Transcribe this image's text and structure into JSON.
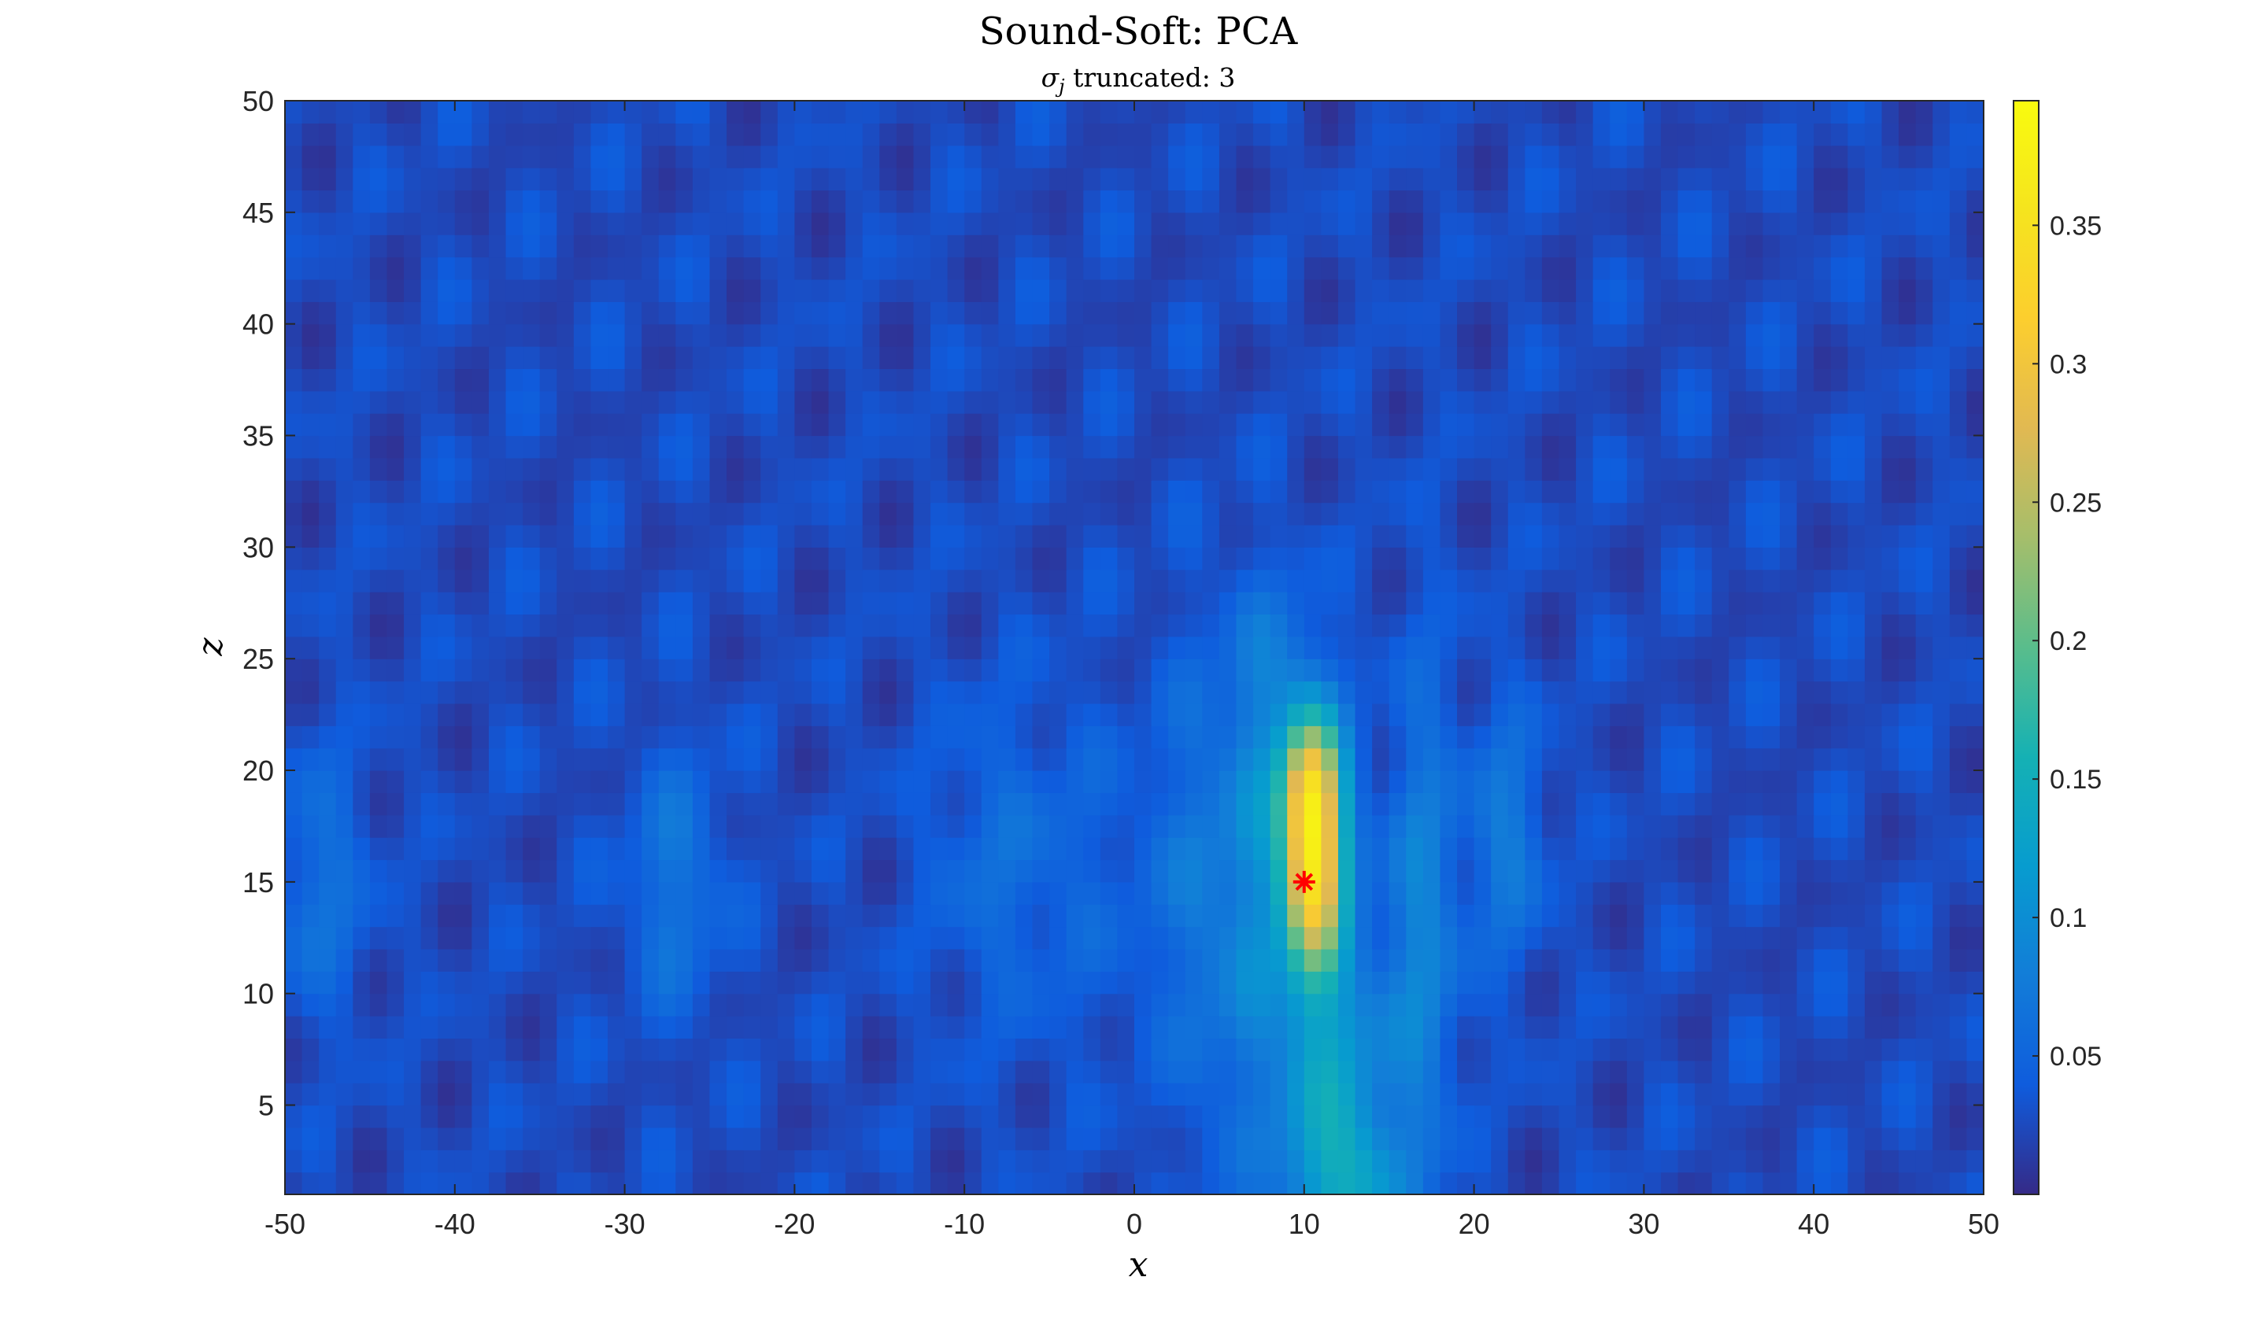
{
  "chart_data": {
    "type": "heatmap",
    "title": "Sound-Soft: PCA",
    "subtitle": {
      "symbol": "σ",
      "subscript": "j",
      "text": " truncated: 3"
    },
    "xlabel": "x",
    "ylabel": "z",
    "xlim": [
      -50,
      50
    ],
    "ylim": [
      1,
      50
    ],
    "xticks": [
      -50,
      -40,
      -30,
      -20,
      -10,
      0,
      10,
      20,
      30,
      40,
      50
    ],
    "yticks": [
      5,
      10,
      15,
      20,
      25,
      30,
      35,
      40,
      45,
      50
    ],
    "colormap": "parula",
    "colorbar": {
      "range": [
        0,
        0.395
      ],
      "ticks": [
        0.05,
        0.1,
        0.15,
        0.2,
        0.25,
        0.3,
        0.35
      ],
      "tick_labels": [
        "0.05",
        "0.1",
        "0.15",
        "0.2",
        "0.25",
        "0.3",
        "0.35"
      ],
      "placement": "right"
    },
    "grid": false,
    "x_grid_step": 1,
    "z_grid_step": 1,
    "peak": {
      "x": 10.5,
      "z": 16.5,
      "value": 0.39
    },
    "field_features": [
      {
        "x": 10.5,
        "z": 16.5,
        "sx": 1.3,
        "sz": 3.8,
        "value": 0.33
      },
      {
        "x": 10.3,
        "z": 19.5,
        "sx": 1.2,
        "sz": 1.8,
        "value": 0.07
      },
      {
        "x": 11.5,
        "z": 5.0,
        "sx": 2.5,
        "sz": 5.5,
        "value": 0.1
      },
      {
        "x": 13.0,
        "z": 1.5,
        "sx": 2.0,
        "sz": 2.0,
        "value": 0.05
      },
      {
        "x": 17.0,
        "z": 13.0,
        "sx": 1.5,
        "sz": 8.0,
        "value": 0.06
      },
      {
        "x": 22.0,
        "z": 17.0,
        "sx": 1.5,
        "sz": 4.0,
        "value": 0.05
      },
      {
        "x": 7.0,
        "z": 15.0,
        "sx": 1.2,
        "sz": 7.0,
        "value": 0.055
      },
      {
        "x": 4.0,
        "z": 14.0,
        "sx": 1.3,
        "sz": 8.0,
        "value": 0.04
      },
      {
        "x": 8.5,
        "z": 24.0,
        "sx": 2.0,
        "sz": 3.5,
        "value": 0.035
      },
      {
        "x": -27.0,
        "z": 15.0,
        "sx": 2.0,
        "sz": 4.0,
        "value": 0.045
      },
      {
        "x": -48.0,
        "z": 15.0,
        "sx": 2.0,
        "sz": 4.0,
        "value": 0.04
      },
      {
        "x": -8.0,
        "z": 16.0,
        "sx": 3.0,
        "sz": 5.0,
        "value": 0.03
      },
      {
        "x": 0.0,
        "z": 15.0,
        "sx": 4.0,
        "sz": 6.0,
        "value": 0.02
      }
    ],
    "base_value": 0.025,
    "source_marker": {
      "x": 10,
      "z": 15,
      "symbol": "*",
      "color": "#ff0000"
    }
  }
}
